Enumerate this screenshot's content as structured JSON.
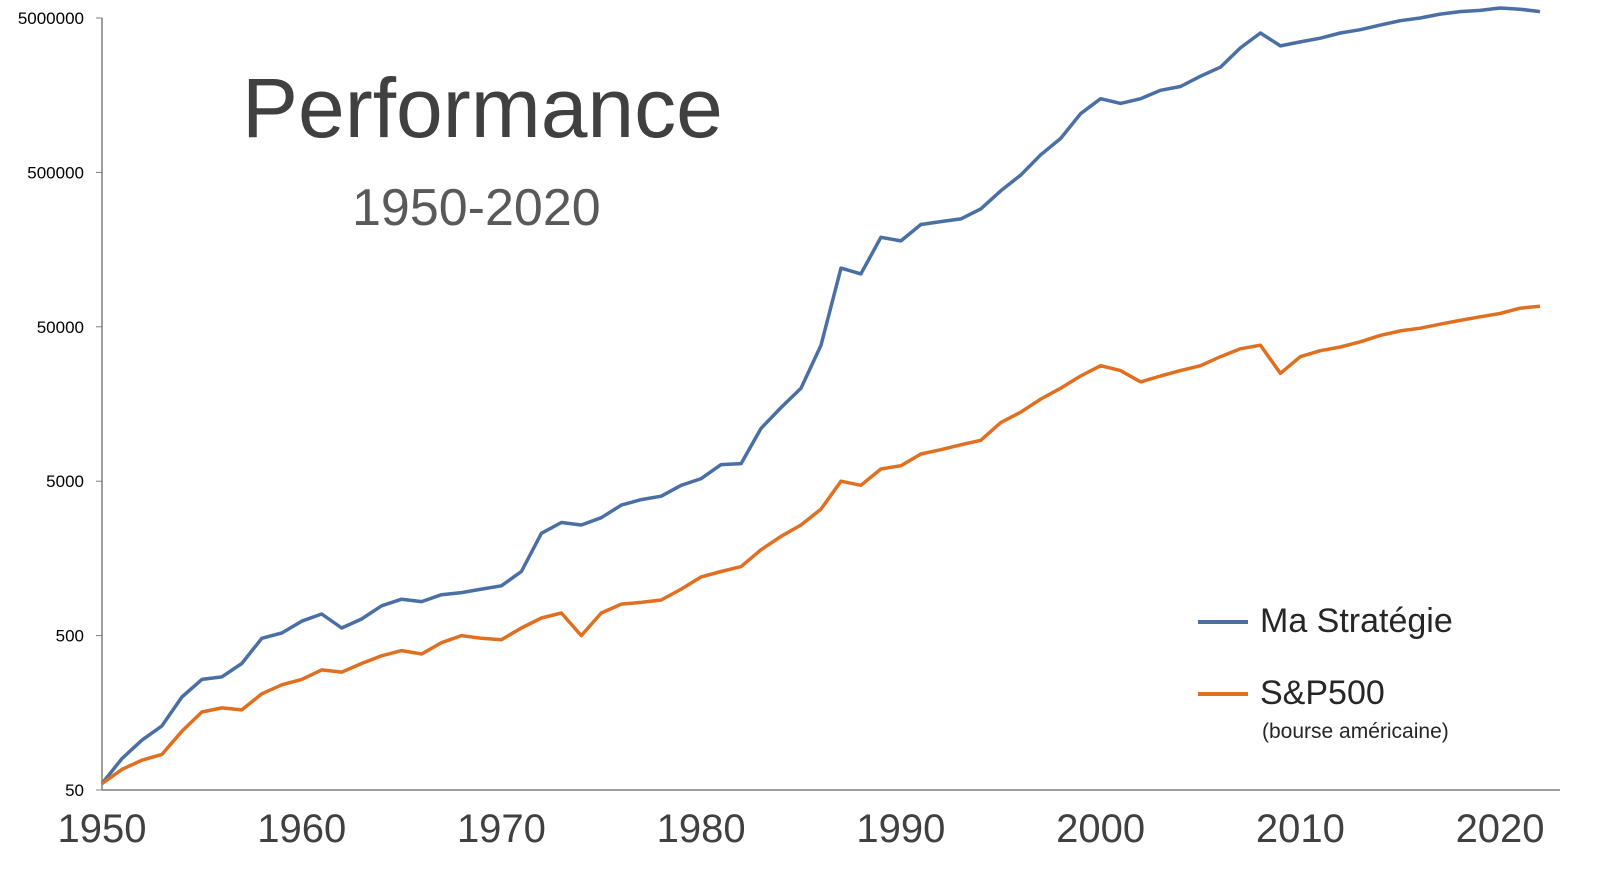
{
  "chart_data": {
    "type": "line",
    "title": "Performance",
    "subtitle": "1950-2020",
    "xlabel": "",
    "ylabel": "",
    "y_scale": "log",
    "ylim": [
      50,
      5000000
    ],
    "xlim": [
      1950,
      2022
    ],
    "y_ticks": [
      "5000000",
      "500000",
      "50000",
      "5000",
      "500",
      "50"
    ],
    "x_ticks": [
      "1950",
      "1960",
      "1970",
      "1980",
      "1990",
      "2000",
      "2010",
      "2020"
    ],
    "grid": false,
    "legend_position": "bottom-right",
    "legend_note": "(bourse américaine)",
    "series": [
      {
        "name": "Ma Stratégie",
        "color": "#4a6fa5",
        "x": [
          1950,
          1951,
          1952,
          1953,
          1954,
          1955,
          1956,
          1957,
          1958,
          1959,
          1960,
          1961,
          1962,
          1963,
          1964,
          1965,
          1966,
          1967,
          1968,
          1969,
          1970,
          1971,
          1972,
          1973,
          1974,
          1975,
          1976,
          1977,
          1978,
          1979,
          1980,
          1981,
          1982,
          1983,
          1984,
          1985,
          1986,
          1987,
          1988,
          1989,
          1990,
          1991,
          1992,
          1993,
          1994,
          1995,
          1996,
          1997,
          1998,
          1999,
          2000,
          2001,
          2002,
          2003,
          2004,
          2005,
          2006,
          2007,
          2008,
          2009,
          2010,
          2011,
          2012,
          2013,
          2014,
          2015,
          2016,
          2017,
          2018,
          2019,
          2020,
          2021,
          2022
        ],
        "y": [
          55,
          80,
          105,
          130,
          200,
          260,
          270,
          330,
          480,
          520,
          620,
          690,
          560,
          640,
          780,
          860,
          830,
          920,
          950,
          1000,
          1050,
          1300,
          2300,
          2700,
          2600,
          2900,
          3500,
          3800,
          4000,
          4700,
          5200,
          6400,
          6500,
          11000,
          15000,
          20000,
          38000,
          120000,
          110000,
          190000,
          180000,
          230000,
          240000,
          250000,
          290000,
          380000,
          480000,
          650000,
          830000,
          1200000,
          1500000,
          1400000,
          1500000,
          1700000,
          1800000,
          2100000,
          2400000,
          3200000,
          4000000,
          3300000,
          3500000,
          3700000,
          4000000,
          4200000,
          4500000,
          4800000,
          5000000,
          5300000,
          5500000,
          5600000,
          5800000,
          5700000,
          5500000
        ]
      },
      {
        "name": "S&P500",
        "color": "#e07020",
        "x": [
          1950,
          1951,
          1952,
          1953,
          1954,
          1955,
          1956,
          1957,
          1958,
          1959,
          1960,
          1961,
          1962,
          1963,
          1964,
          1965,
          1966,
          1967,
          1968,
          1969,
          1970,
          1971,
          1972,
          1973,
          1974,
          1975,
          1976,
          1977,
          1978,
          1979,
          1980,
          1981,
          1982,
          1983,
          1984,
          1985,
          1986,
          1987,
          1988,
          1989,
          1990,
          1991,
          1992,
          1993,
          1994,
          1995,
          1996,
          1997,
          1998,
          1999,
          2000,
          2001,
          2002,
          2003,
          2004,
          2005,
          2006,
          2007,
          2008,
          2009,
          2010,
          2011,
          2012,
          2013,
          2014,
          2015,
          2016,
          2017,
          2018,
          2019,
          2020,
          2021,
          2022
        ],
        "y": [
          55,
          68,
          78,
          85,
          120,
          160,
          170,
          165,
          210,
          240,
          260,
          300,
          290,
          330,
          370,
          400,
          380,
          450,
          500,
          480,
          470,
          560,
          650,
          700,
          500,
          700,
          800,
          820,
          850,
          1000,
          1200,
          1300,
          1400,
          1800,
          2200,
          2600,
          3300,
          5000,
          4700,
          6000,
          6300,
          7500,
          8000,
          8600,
          9200,
          12000,
          14000,
          17000,
          20000,
          24000,
          28000,
          26000,
          22000,
          24000,
          26000,
          28000,
          32000,
          36000,
          38000,
          25000,
          32000,
          35000,
          37000,
          40000,
          44000,
          47000,
          49000,
          52000,
          55000,
          58000,
          61000,
          66000,
          68000
        ]
      }
    ]
  }
}
